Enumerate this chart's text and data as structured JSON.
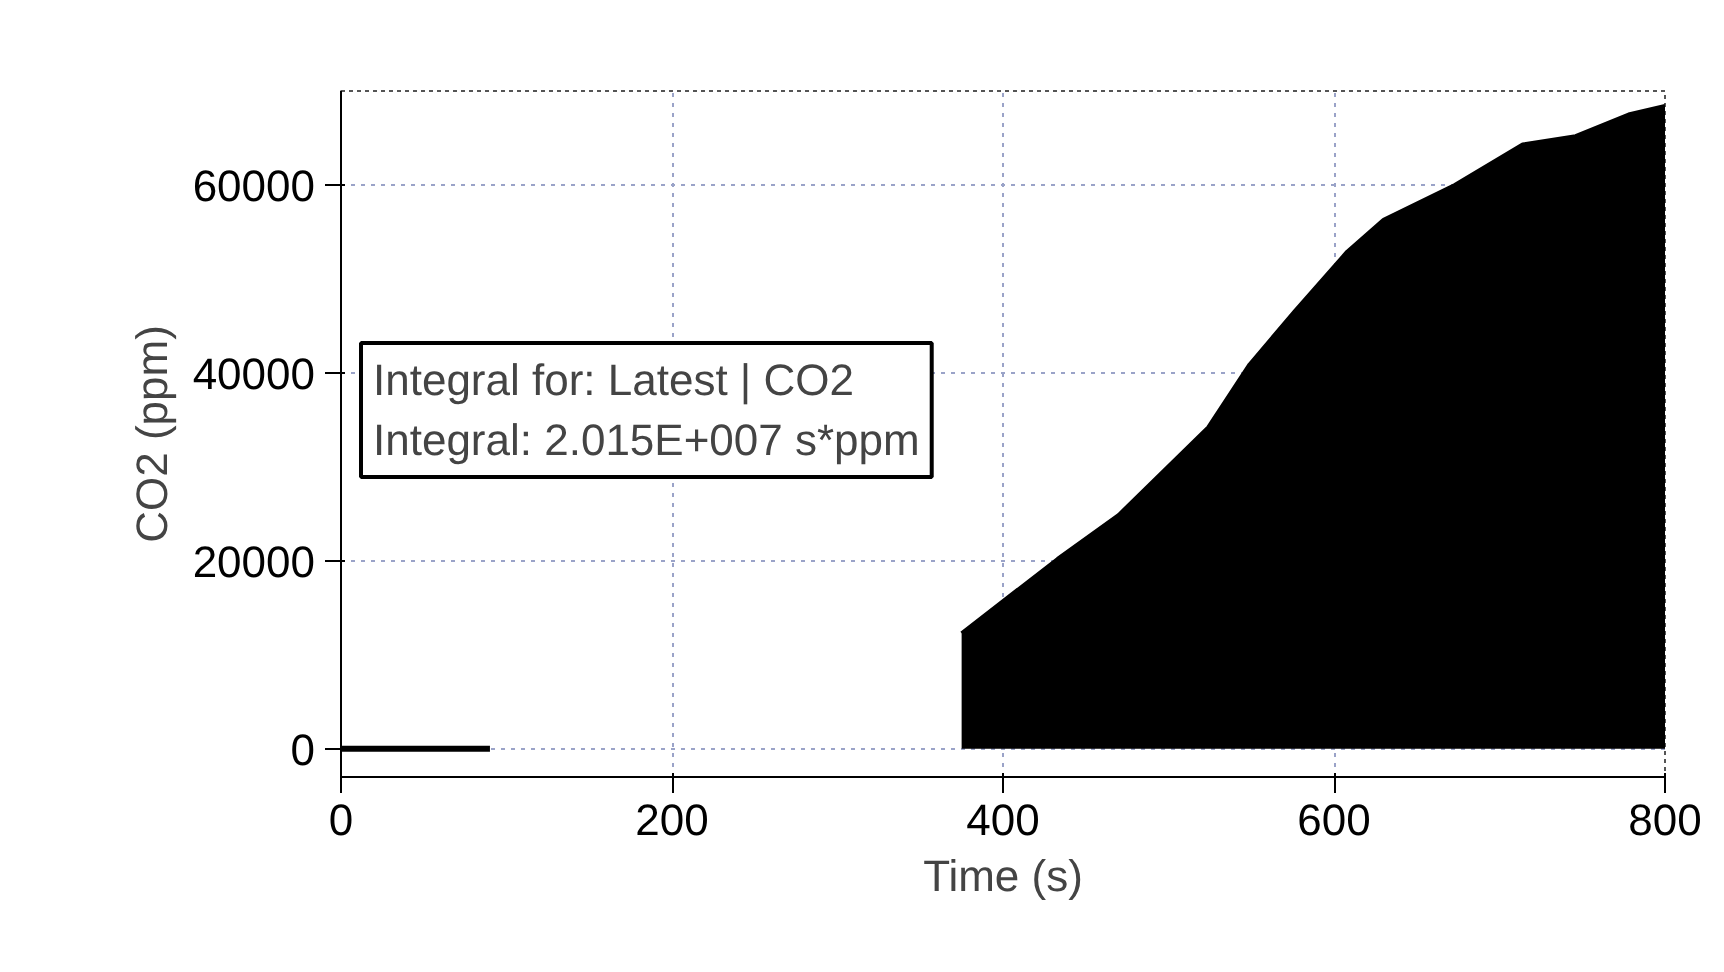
{
  "chart_data": {
    "type": "area",
    "xlabel": "Time (s)",
    "ylabel": "CO2 (ppm)",
    "xlim": [
      0,
      800
    ],
    "ylim": [
      -3000,
      70000
    ],
    "xticks": [
      0,
      200,
      400,
      600,
      800
    ],
    "yticks": [
      0,
      20000,
      40000,
      60000
    ],
    "grid": true,
    "series": [
      {
        "type": "line",
        "color": "#000000",
        "x": [
          0,
          90
        ],
        "values": [
          0,
          0
        ]
      },
      {
        "type": "area",
        "color": "#000000",
        "x": [
          375,
          433,
          470,
          524,
          549,
          576,
          608,
          630,
          673,
          714,
          746,
          778,
          800
        ],
        "values": [
          12300,
          20200,
          24900,
          34200,
          40900,
          46500,
          52900,
          56300,
          60000,
          64300,
          65200,
          67500,
          68400
        ]
      }
    ],
    "annotations": [
      "Integral for: Latest | CO2",
      "Integral: 2.015E+007 s*ppm"
    ]
  }
}
